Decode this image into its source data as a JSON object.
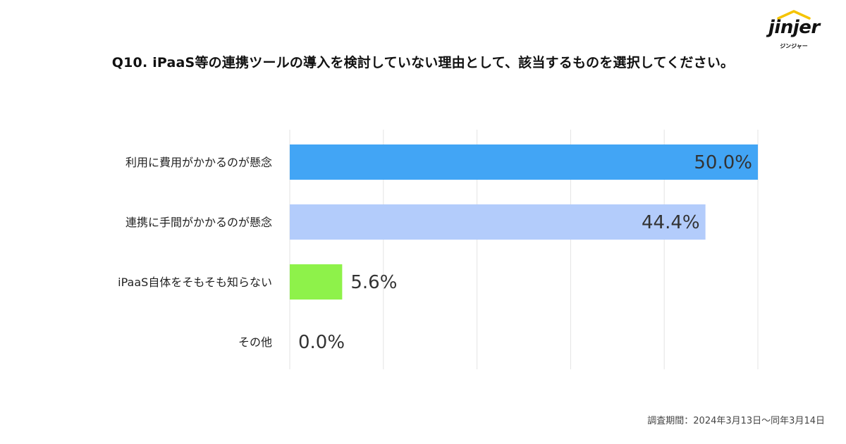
{
  "title": "Q10. iPaaS等の連携ツールの導入を検討していない理由として、該当するものを選択してください。",
  "logo": {
    "name": "jinjer",
    "subtitle": "ジンジャー"
  },
  "footer": "調査期間：2024年3月13日〜同年3月14日",
  "chart_data": {
    "type": "bar",
    "orientation": "horizontal",
    "categories": [
      "利用に費用がかかるのが懸念",
      "連携に手間がかかるのが懸念",
      "iPaaS自体をそもそも知らない",
      "その他"
    ],
    "values": [
      50.0,
      44.4,
      5.6,
      0.0
    ],
    "value_labels": [
      "50.0%",
      "44.4%",
      "5.6%",
      "0.0%"
    ],
    "bar_colors": [
      "#42a5f5",
      "#b3ccfb",
      "#8ef24a",
      "#cccccc"
    ],
    "xlim": [
      0,
      50
    ],
    "grid": true,
    "legend": "none"
  }
}
